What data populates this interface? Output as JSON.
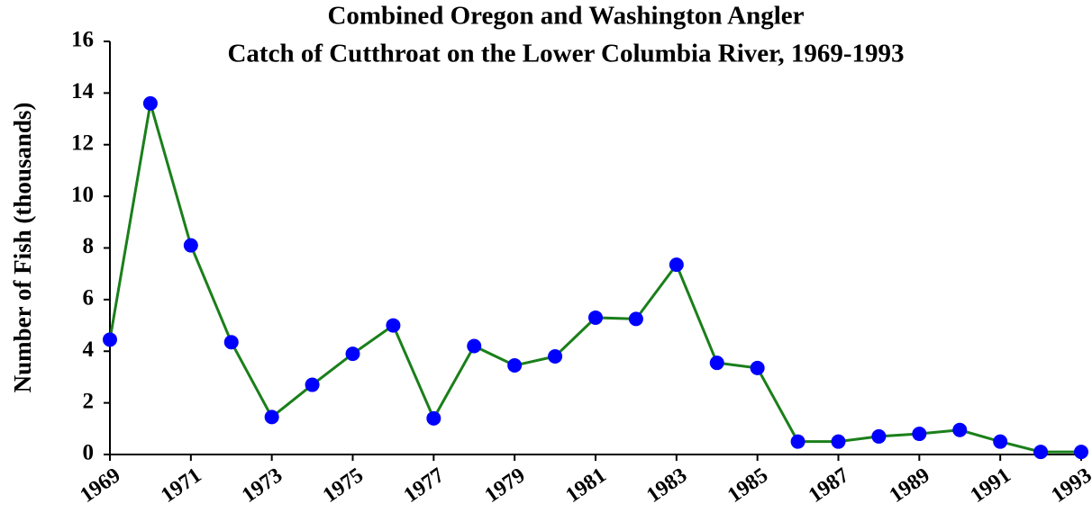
{
  "chart_data": {
    "type": "line",
    "title": [
      "Combined Oregon and Washington Angler",
      "Catch of Cutthroat on the Lower Columbia River, 1969-1993"
    ],
    "ylabel": "Number of Fish (thousands)",
    "x": [
      1969,
      1970,
      1971,
      1972,
      1973,
      1974,
      1975,
      1976,
      1977,
      1978,
      1979,
      1980,
      1981,
      1982,
      1983,
      1984,
      1985,
      1986,
      1987,
      1988,
      1989,
      1990,
      1991,
      1992,
      1993
    ],
    "series": [
      {
        "color": "#1a7f1a",
        "marker_color": "#0000ff",
        "values": [
          4.45,
          13.6,
          8.1,
          4.35,
          1.45,
          2.7,
          3.9,
          5.0,
          1.4,
          4.2,
          3.45,
          3.8,
          5.3,
          5.25,
          7.35,
          3.55,
          3.35,
          0.5,
          0.5,
          0.7,
          0.8,
          0.95,
          0.5,
          0.1,
          0.1
        ]
      }
    ],
    "xlim": [
      1969,
      1993
    ],
    "xticks": [
      1969,
      1971,
      1973,
      1975,
      1977,
      1979,
      1981,
      1983,
      1985,
      1987,
      1989,
      1991,
      1993
    ],
    "ylim": [
      0,
      16
    ],
    "yticks": [
      0,
      2,
      4,
      6,
      8,
      10,
      12,
      14,
      16
    ]
  }
}
